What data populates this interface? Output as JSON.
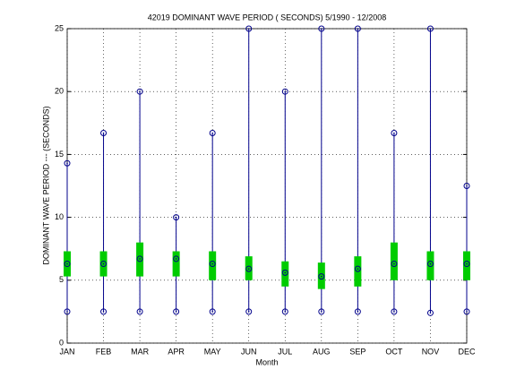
{
  "chart_data": {
    "type": "box-range",
    "title": "42019  DOMINANT WAVE PERIOD ( SECONDS) 5/1990 - 12/2008",
    "x_label": "Month",
    "y_label": "DOMINANT WAVE PERIOD --- (SECONDS)",
    "categories": [
      "JAN",
      "FEB",
      "MAR",
      "APR",
      "MAY",
      "JUN",
      "JUL",
      "AUG",
      "SEP",
      "OCT",
      "NOV",
      "DEC"
    ],
    "max": [
      14.3,
      16.7,
      20,
      10,
      16.7,
      25,
      20,
      25,
      25,
      16.7,
      25,
      12.5
    ],
    "min": [
      2.5,
      2.5,
      2.5,
      2.5,
      2.5,
      2.5,
      2.5,
      2.5,
      2.5,
      2.5,
      2.4,
      2.5
    ],
    "median": [
      6.3,
      6.3,
      6.7,
      6.7,
      6.3,
      5.9,
      5.6,
      5.3,
      5.9,
      6.3,
      6.3,
      6.3
    ],
    "box_low": [
      5.3,
      5.3,
      5.3,
      5.3,
      5.0,
      5.0,
      4.5,
      4.3,
      4.5,
      5.0,
      5.0,
      5.0
    ],
    "box_high": [
      7.3,
      7.3,
      8.0,
      7.3,
      7.3,
      6.9,
      6.5,
      6.4,
      6.9,
      8.0,
      7.3,
      7.3
    ],
    "line_color": "#00008b",
    "box_color": "#00cc00",
    "ylim": [
      0,
      25
    ],
    "yticks": [
      0,
      5,
      10,
      15,
      20,
      25
    ],
    "grid": true
  }
}
